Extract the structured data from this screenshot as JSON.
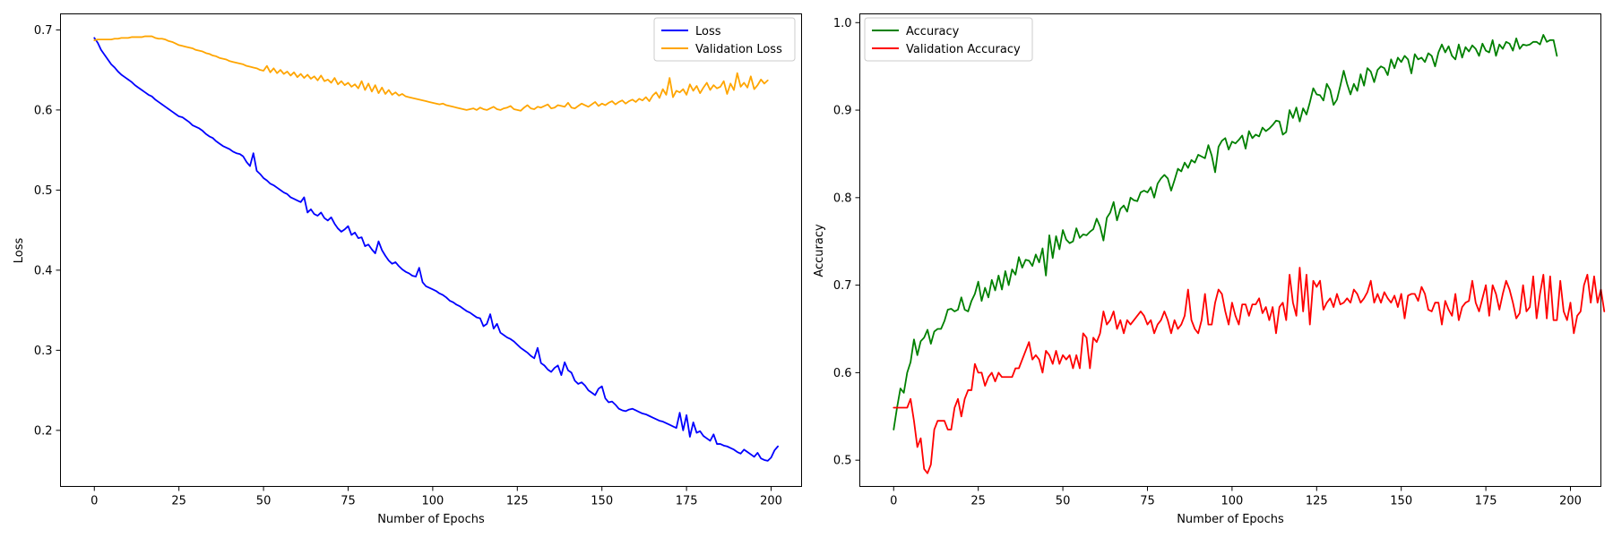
{
  "chart_data": [
    {
      "type": "line",
      "xlabel": "Number of Epochs",
      "ylabel": "Loss",
      "xlim": [
        -10,
        209
      ],
      "ylim": [
        0.13,
        0.72
      ],
      "xticks": [
        0,
        25,
        50,
        75,
        100,
        125,
        150,
        175,
        200
      ],
      "yticks": [
        0.2,
        0.3,
        0.4,
        0.5,
        0.6,
        0.7
      ],
      "legend_position": "top-right",
      "series": [
        {
          "name": "Loss",
          "color": "#0000ff",
          "values": [
            0.69,
            0.684,
            0.675,
            0.669,
            0.663,
            0.657,
            0.653,
            0.648,
            0.644,
            0.641,
            0.638,
            0.635,
            0.631,
            0.628,
            0.625,
            0.622,
            0.619,
            0.617,
            0.613,
            0.61,
            0.607,
            0.604,
            0.601,
            0.598,
            0.595,
            0.592,
            0.591,
            0.588,
            0.585,
            0.581,
            0.579,
            0.577,
            0.574,
            0.57,
            0.567,
            0.565,
            0.561,
            0.558,
            0.555,
            0.553,
            0.551,
            0.548,
            0.546,
            0.545,
            0.542,
            0.535,
            0.53,
            0.546,
            0.524,
            0.52,
            0.515,
            0.512,
            0.508,
            0.506,
            0.503,
            0.5,
            0.497,
            0.495,
            0.491,
            0.489,
            0.487,
            0.485,
            0.491,
            0.472,
            0.476,
            0.47,
            0.468,
            0.472,
            0.465,
            0.462,
            0.466,
            0.458,
            0.452,
            0.448,
            0.451,
            0.455,
            0.444,
            0.447,
            0.44,
            0.441,
            0.43,
            0.432,
            0.426,
            0.421,
            0.436,
            0.425,
            0.418,
            0.412,
            0.408,
            0.41,
            0.405,
            0.401,
            0.398,
            0.396,
            0.393,
            0.392,
            0.403,
            0.385,
            0.38,
            0.378,
            0.376,
            0.374,
            0.371,
            0.369,
            0.366,
            0.362,
            0.36,
            0.357,
            0.355,
            0.352,
            0.349,
            0.347,
            0.344,
            0.341,
            0.34,
            0.33,
            0.333,
            0.345,
            0.327,
            0.333,
            0.322,
            0.319,
            0.316,
            0.314,
            0.311,
            0.307,
            0.303,
            0.3,
            0.297,
            0.293,
            0.29,
            0.303,
            0.284,
            0.281,
            0.276,
            0.273,
            0.278,
            0.281,
            0.269,
            0.285,
            0.275,
            0.272,
            0.262,
            0.258,
            0.26,
            0.256,
            0.25,
            0.247,
            0.244,
            0.252,
            0.255,
            0.24,
            0.235,
            0.236,
            0.232,
            0.227,
            0.225,
            0.224,
            0.226,
            0.227,
            0.225,
            0.223,
            0.221,
            0.22,
            0.218,
            0.216,
            0.214,
            0.212,
            0.211,
            0.209,
            0.207,
            0.205,
            0.203,
            0.222,
            0.2,
            0.219,
            0.192,
            0.21,
            0.197,
            0.199,
            0.193,
            0.19,
            0.187,
            0.195,
            0.183,
            0.183,
            0.181,
            0.18,
            0.178,
            0.176,
            0.173,
            0.171,
            0.176,
            0.173,
            0.17,
            0.167,
            0.172,
            0.165,
            0.163,
            0.162,
            0.166,
            0.175,
            0.18
          ]
        },
        {
          "name": "Validation Loss",
          "color": "#ffa500",
          "values": [
            0.687,
            0.688,
            0.688,
            0.688,
            0.688,
            0.688,
            0.689,
            0.689,
            0.69,
            0.69,
            0.69,
            0.691,
            0.691,
            0.691,
            0.691,
            0.692,
            0.692,
            0.692,
            0.69,
            0.689,
            0.689,
            0.688,
            0.686,
            0.685,
            0.683,
            0.681,
            0.68,
            0.679,
            0.678,
            0.677,
            0.675,
            0.674,
            0.673,
            0.671,
            0.67,
            0.668,
            0.667,
            0.665,
            0.664,
            0.663,
            0.661,
            0.66,
            0.659,
            0.658,
            0.657,
            0.655,
            0.654,
            0.653,
            0.652,
            0.65,
            0.649,
            0.655,
            0.647,
            0.652,
            0.646,
            0.65,
            0.645,
            0.648,
            0.643,
            0.647,
            0.641,
            0.645,
            0.64,
            0.644,
            0.639,
            0.642,
            0.637,
            0.643,
            0.636,
            0.638,
            0.634,
            0.64,
            0.632,
            0.636,
            0.631,
            0.634,
            0.629,
            0.632,
            0.627,
            0.636,
            0.625,
            0.633,
            0.623,
            0.631,
            0.621,
            0.628,
            0.62,
            0.625,
            0.619,
            0.622,
            0.618,
            0.62,
            0.617,
            0.616,
            0.615,
            0.614,
            0.613,
            0.612,
            0.611,
            0.61,
            0.609,
            0.608,
            0.607,
            0.608,
            0.606,
            0.605,
            0.604,
            0.603,
            0.602,
            0.601,
            0.6,
            0.601,
            0.602,
            0.6,
            0.603,
            0.601,
            0.6,
            0.602,
            0.604,
            0.601,
            0.6,
            0.602,
            0.603,
            0.605,
            0.601,
            0.6,
            0.599,
            0.603,
            0.606,
            0.602,
            0.601,
            0.604,
            0.603,
            0.605,
            0.607,
            0.602,
            0.603,
            0.606,
            0.605,
            0.604,
            0.609,
            0.603,
            0.602,
            0.605,
            0.608,
            0.606,
            0.604,
            0.607,
            0.61,
            0.605,
            0.608,
            0.606,
            0.609,
            0.611,
            0.607,
            0.61,
            0.612,
            0.608,
            0.611,
            0.613,
            0.61,
            0.614,
            0.612,
            0.616,
            0.611,
            0.618,
            0.622,
            0.615,
            0.626,
            0.619,
            0.64,
            0.616,
            0.624,
            0.622,
            0.626,
            0.619,
            0.632,
            0.624,
            0.63,
            0.621,
            0.628,
            0.634,
            0.625,
            0.631,
            0.627,
            0.629,
            0.636,
            0.62,
            0.633,
            0.625,
            0.646,
            0.629,
            0.634,
            0.628,
            0.642,
            0.626,
            0.631,
            0.638,
            0.633,
            0.637
          ]
        }
      ]
    },
    {
      "type": "line",
      "xlabel": "Number of Epochs",
      "ylabel": "Accuracy",
      "xlim": [
        -10,
        209
      ],
      "ylim": [
        0.47,
        1.01
      ],
      "xticks": [
        0,
        25,
        50,
        75,
        100,
        125,
        150,
        175,
        200
      ],
      "yticks": [
        0.5,
        0.6,
        0.7,
        0.8,
        0.9,
        1.0
      ],
      "legend_position": "top-left",
      "series": [
        {
          "name": "Accuracy",
          "color": "#008000",
          "values": [
            0.535,
            0.56,
            0.582,
            0.577,
            0.6,
            0.612,
            0.638,
            0.62,
            0.636,
            0.64,
            0.649,
            0.633,
            0.647,
            0.65,
            0.65,
            0.659,
            0.672,
            0.673,
            0.67,
            0.672,
            0.686,
            0.672,
            0.67,
            0.682,
            0.69,
            0.704,
            0.682,
            0.697,
            0.686,
            0.706,
            0.694,
            0.711,
            0.695,
            0.716,
            0.7,
            0.718,
            0.712,
            0.732,
            0.72,
            0.729,
            0.728,
            0.722,
            0.735,
            0.726,
            0.742,
            0.711,
            0.757,
            0.731,
            0.756,
            0.741,
            0.763,
            0.752,
            0.748,
            0.75,
            0.765,
            0.754,
            0.758,
            0.757,
            0.761,
            0.764,
            0.776,
            0.767,
            0.751,
            0.777,
            0.783,
            0.795,
            0.774,
            0.787,
            0.791,
            0.784,
            0.8,
            0.797,
            0.796,
            0.806,
            0.808,
            0.806,
            0.812,
            0.8,
            0.816,
            0.822,
            0.826,
            0.822,
            0.808,
            0.82,
            0.833,
            0.83,
            0.84,
            0.834,
            0.843,
            0.84,
            0.849,
            0.847,
            0.845,
            0.86,
            0.848,
            0.829,
            0.858,
            0.865,
            0.868,
            0.855,
            0.864,
            0.862,
            0.866,
            0.871,
            0.856,
            0.876,
            0.868,
            0.872,
            0.87,
            0.88,
            0.876,
            0.879,
            0.883,
            0.888,
            0.887,
            0.872,
            0.875,
            0.9,
            0.891,
            0.903,
            0.887,
            0.902,
            0.895,
            0.909,
            0.925,
            0.918,
            0.917,
            0.911,
            0.93,
            0.923,
            0.906,
            0.912,
            0.928,
            0.945,
            0.93,
            0.918,
            0.93,
            0.922,
            0.941,
            0.928,
            0.948,
            0.944,
            0.932,
            0.946,
            0.95,
            0.948,
            0.94,
            0.958,
            0.948,
            0.96,
            0.955,
            0.962,
            0.958,
            0.942,
            0.964,
            0.958,
            0.96,
            0.955,
            0.965,
            0.962,
            0.95,
            0.966,
            0.975,
            0.966,
            0.973,
            0.962,
            0.958,
            0.975,
            0.96,
            0.972,
            0.967,
            0.974,
            0.97,
            0.962,
            0.976,
            0.968,
            0.966,
            0.98,
            0.962,
            0.975,
            0.97,
            0.978,
            0.976,
            0.968,
            0.982,
            0.97,
            0.975,
            0.974,
            0.975,
            0.978,
            0.978,
            0.975,
            0.986,
            0.978,
            0.98,
            0.98,
            0.962
          ]
        },
        {
          "name": "Validation Accuracy",
          "color": "#ff0000",
          "values": [
            0.56,
            0.56,
            0.56,
            0.56,
            0.56,
            0.57,
            0.545,
            0.515,
            0.525,
            0.49,
            0.485,
            0.495,
            0.535,
            0.545,
            0.545,
            0.545,
            0.535,
            0.535,
            0.56,
            0.57,
            0.55,
            0.57,
            0.58,
            0.58,
            0.61,
            0.6,
            0.6,
            0.585,
            0.595,
            0.6,
            0.59,
            0.6,
            0.595,
            0.595,
            0.595,
            0.595,
            0.605,
            0.605,
            0.615,
            0.625,
            0.635,
            0.615,
            0.62,
            0.615,
            0.6,
            0.625,
            0.62,
            0.61,
            0.625,
            0.61,
            0.62,
            0.615,
            0.62,
            0.605,
            0.62,
            0.605,
            0.645,
            0.64,
            0.605,
            0.64,
            0.635,
            0.645,
            0.67,
            0.655,
            0.66,
            0.67,
            0.65,
            0.66,
            0.645,
            0.66,
            0.655,
            0.66,
            0.665,
            0.67,
            0.665,
            0.655,
            0.66,
            0.645,
            0.655,
            0.66,
            0.67,
            0.66,
            0.645,
            0.66,
            0.65,
            0.655,
            0.665,
            0.695,
            0.66,
            0.65,
            0.645,
            0.66,
            0.69,
            0.655,
            0.655,
            0.68,
            0.695,
            0.69,
            0.67,
            0.655,
            0.68,
            0.665,
            0.655,
            0.678,
            0.678,
            0.665,
            0.678,
            0.678,
            0.685,
            0.668,
            0.675,
            0.66,
            0.675,
            0.645,
            0.675,
            0.68,
            0.66,
            0.712,
            0.68,
            0.665,
            0.72,
            0.67,
            0.712,
            0.655,
            0.705,
            0.698,
            0.705,
            0.672,
            0.68,
            0.685,
            0.675,
            0.69,
            0.678,
            0.68,
            0.685,
            0.68,
            0.695,
            0.69,
            0.68,
            0.685,
            0.692,
            0.705,
            0.68,
            0.69,
            0.68,
            0.692,
            0.685,
            0.68,
            0.688,
            0.675,
            0.69,
            0.662,
            0.688,
            0.69,
            0.69,
            0.682,
            0.698,
            0.69,
            0.672,
            0.67,
            0.68,
            0.68,
            0.655,
            0.682,
            0.672,
            0.665,
            0.69,
            0.66,
            0.675,
            0.68,
            0.682,
            0.705,
            0.68,
            0.67,
            0.685,
            0.7,
            0.665,
            0.7,
            0.69,
            0.672,
            0.69,
            0.705,
            0.695,
            0.68,
            0.662,
            0.668,
            0.7,
            0.67,
            0.675,
            0.71,
            0.662,
            0.69,
            0.712,
            0.662,
            0.71,
            0.66,
            0.66,
            0.705,
            0.67,
            0.66,
            0.68,
            0.645,
            0.665,
            0.67,
            0.7,
            0.712,
            0.68,
            0.71,
            0.68,
            0.695,
            0.67
          ]
        }
      ]
    }
  ]
}
